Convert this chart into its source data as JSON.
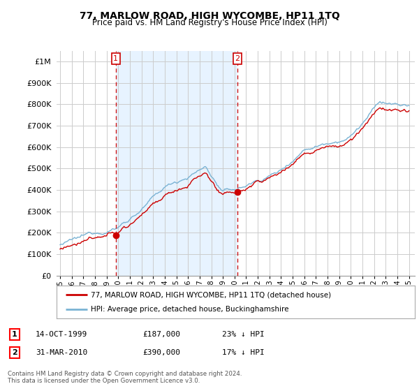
{
  "title": "77, MARLOW ROAD, HIGH WYCOMBE, HP11 1TQ",
  "subtitle": "Price paid vs. HM Land Registry's House Price Index (HPI)",
  "ylim": [
    0,
    1050000
  ],
  "yticks": [
    0,
    100000,
    200000,
    300000,
    400000,
    500000,
    600000,
    700000,
    800000,
    900000,
    1000000
  ],
  "ytick_labels": [
    "£0",
    "£100K",
    "£200K",
    "£300K",
    "£400K",
    "£500K",
    "£600K",
    "£700K",
    "£800K",
    "£900K",
    "£1M"
  ],
  "hpi_color": "#7ab3d4",
  "price_color": "#cc0000",
  "vline_color": "#cc0000",
  "shade_color": "#ddeeff",
  "marker1_year": 1999.79,
  "marker1_price": 187000,
  "marker2_year": 2010.25,
  "marker2_price": 390000,
  "legend_label1": "77, MARLOW ROAD, HIGH WYCOMBE, HP11 1TQ (detached house)",
  "legend_label2": "HPI: Average price, detached house, Buckinghamshire",
  "table_row1": [
    "1",
    "14-OCT-1999",
    "£187,000",
    "23% ↓ HPI"
  ],
  "table_row2": [
    "2",
    "31-MAR-2010",
    "£390,000",
    "17% ↓ HPI"
  ],
  "footer": "Contains HM Land Registry data © Crown copyright and database right 2024.\nThis data is licensed under the Open Government Licence v3.0.",
  "background_color": "#ffffff",
  "grid_color": "#cccccc",
  "plot_bg": "#f0f4f8"
}
